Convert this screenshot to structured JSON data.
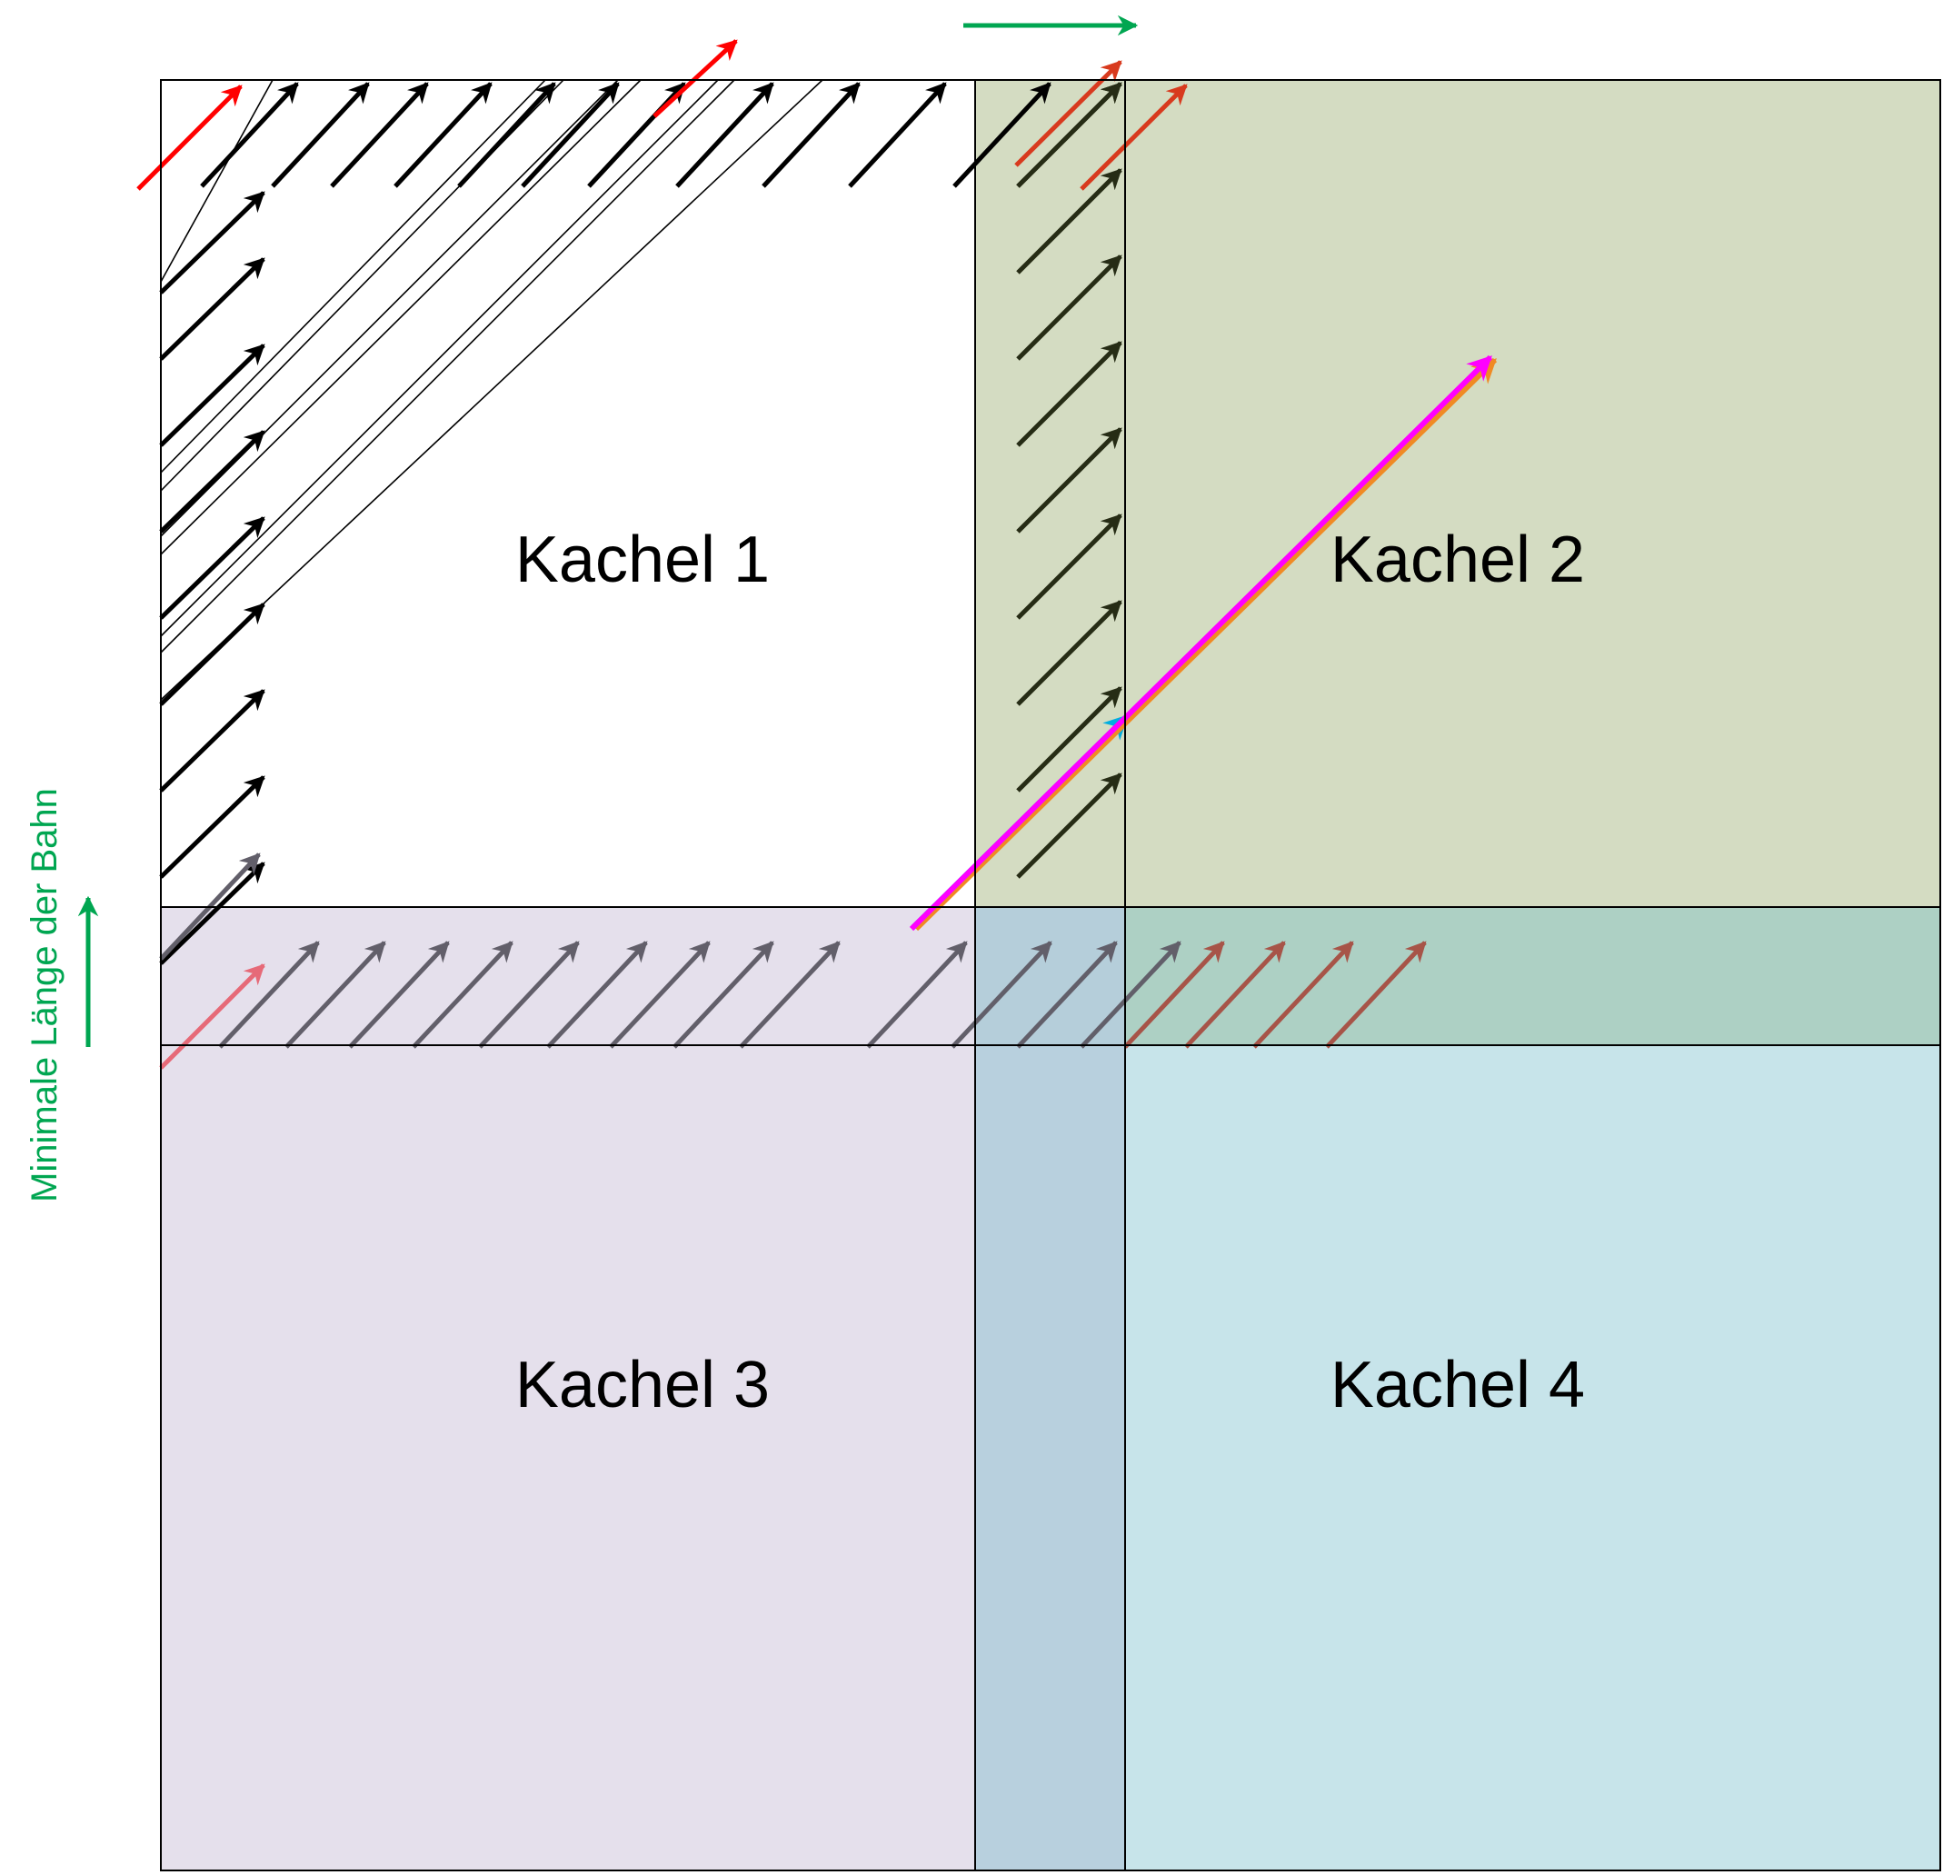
{
  "tiles": [
    {
      "label": "Kachel 1"
    },
    {
      "label": "Kachel 2"
    },
    {
      "label": "Kachel 3"
    },
    {
      "label": "Kachel 4"
    }
  ],
  "side_label": "Minimale Länge der Bahn",
  "colors": {
    "tile_1": "#ffffff",
    "tile_2": "#d4dcc2",
    "tile_3": "#e5e0ec",
    "tile_4": "#c7e4ea",
    "overlap_2_4": "#a9cec4",
    "overlap_3_4": "#b6cddd",
    "arrow_black": "#000000",
    "arrow_dark_olive": "#262c15",
    "arrow_gray": "#625f6a",
    "arrow_red": "#ff0000",
    "arrow_dark_red": "#d83a1e",
    "arrow_muted_red": "#a75448",
    "arrow_pink": "#e66a78",
    "arrow_cyan": "#00aee0",
    "arrow_magenta": "#ff00ff",
    "arrow_orange": "#f08a24",
    "accent_green": "#00a651",
    "border": "#000000"
  },
  "arrow_direction": "up-right, 45 degrees"
}
